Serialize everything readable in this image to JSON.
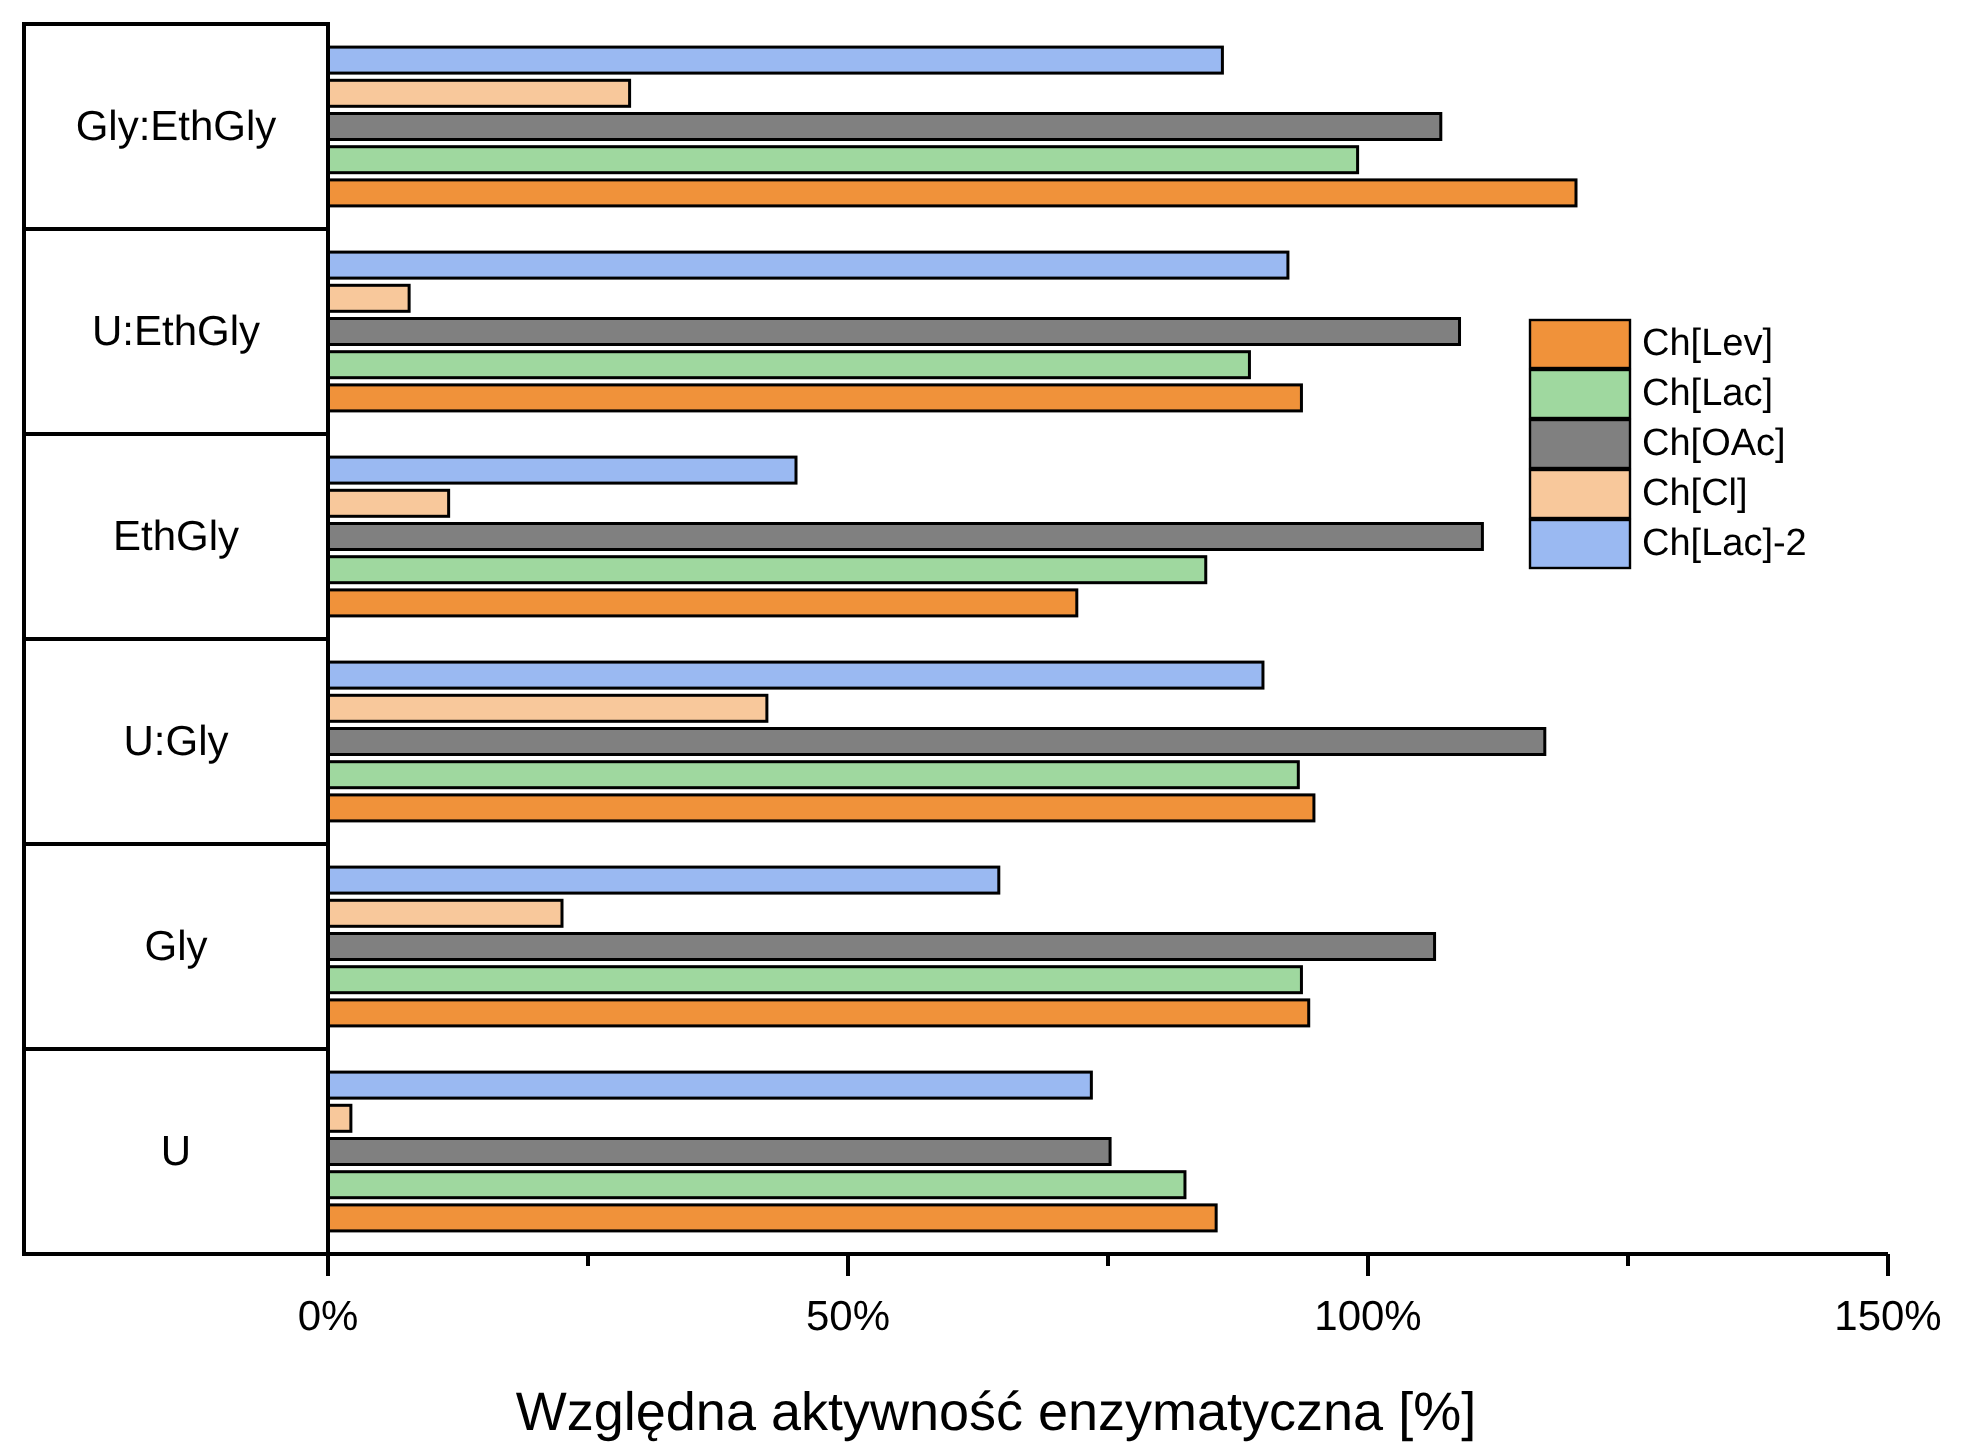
{
  "chart_data": {
    "type": "bar",
    "orientation": "horizontal",
    "xlabel": "Względna aktywność enzymatyczna [%]",
    "categories": [
      "Gly:EthGly",
      "U:EthGly",
      "EthGly",
      "U:Gly",
      "Gly",
      "U"
    ],
    "series": [
      {
        "name": "Ch[Lev]",
        "color": "#f0923a",
        "values": [
          120,
          93.6,
          72,
          94.8,
          94.3,
          85.4
        ]
      },
      {
        "name": "Ch[Lac]",
        "color": "#9fd89f",
        "values": [
          99,
          88.6,
          84.4,
          93.3,
          93.6,
          82.4
        ]
      },
      {
        "name": "Ch[OAc]",
        "color": "#808080",
        "values": [
          107,
          108.8,
          111,
          117,
          106.4,
          75.2
        ]
      },
      {
        "name": "Ch[Cl]",
        "color": "#f8c89b",
        "values": [
          29,
          7.8,
          11.6,
          42.2,
          22.5,
          2.2
        ]
      },
      {
        "name": "Ch[Lac]-2",
        "color": "#9ab9f2",
        "values": [
          86,
          92.3,
          45,
          89.9,
          64.5,
          73.4
        ]
      }
    ],
    "xlim": [
      0,
      150
    ],
    "xticks": [
      {
        "value": 0,
        "label": "0%"
      },
      {
        "value": 25,
        "label": null
      },
      {
        "value": 50,
        "label": "50%"
      },
      {
        "value": 75,
        "label": null
      },
      {
        "value": 100,
        "label": "100%"
      },
      {
        "value": 125,
        "label": null
      },
      {
        "value": 150,
        "label": "150%"
      }
    ],
    "legend": "top right",
    "grid": false
  }
}
